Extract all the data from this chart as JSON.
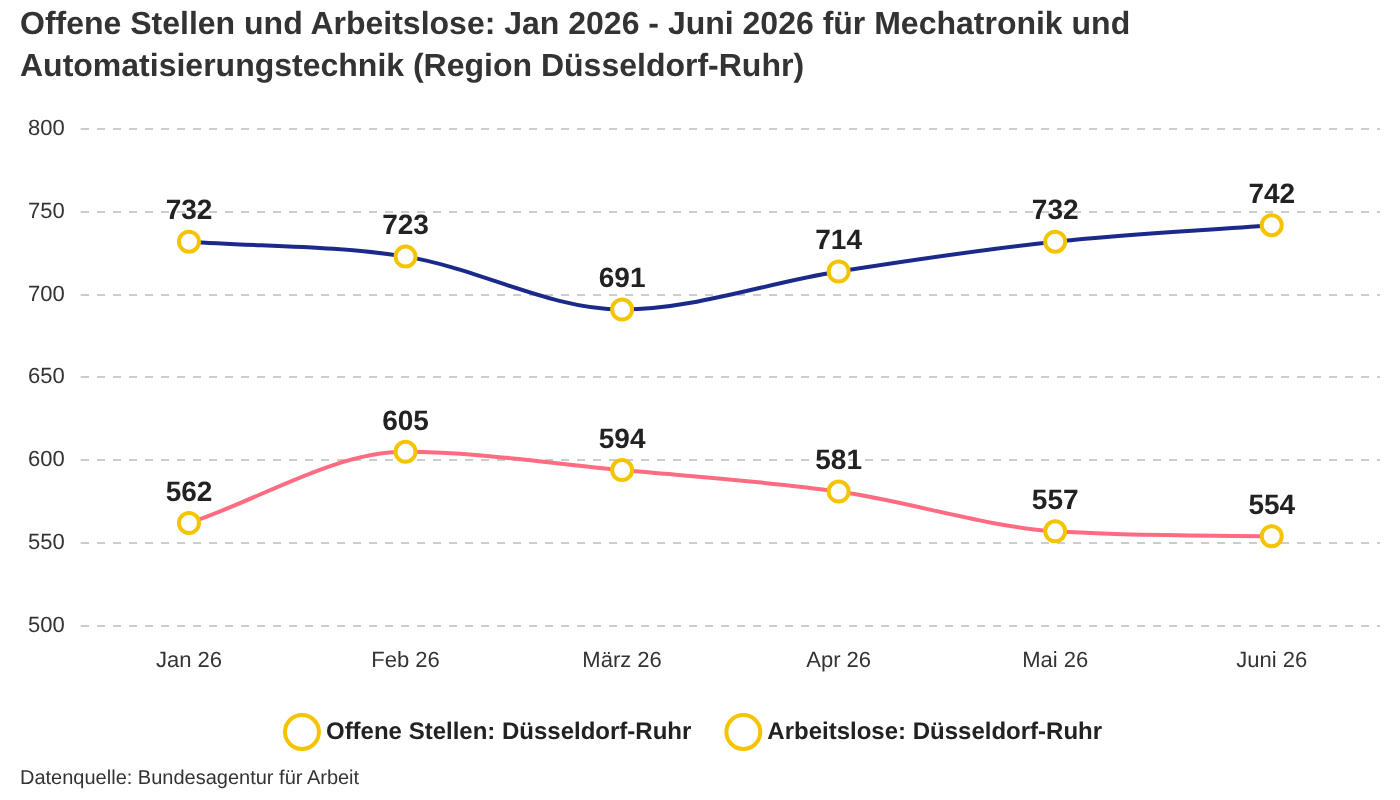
{
  "chart_data": {
    "type": "line",
    "title": "Offene Stellen und Arbeitslose: Jan 2026 - Juni 2026 für Mechatronik und Automatisierungstechnik (Region Düsseldorf-Ruhr)",
    "categories": [
      "Jan 26",
      "Feb 26",
      "März 26",
      "Apr 26",
      "Mai 26",
      "Juni 26"
    ],
    "series": [
      {
        "name": "Offene Stellen: Düsseldorf-Ruhr",
        "color": "#1b2a8a",
        "values": [
          732,
          723,
          691,
          714,
          732,
          742
        ]
      },
      {
        "name": "Arbeitslose: Düsseldorf-Ruhr",
        "color": "#ff6b81",
        "values": [
          562,
          605,
          594,
          581,
          557,
          554
        ]
      }
    ],
    "ylim": [
      500,
      800
    ],
    "yticks": [
      500,
      550,
      600,
      650,
      700,
      750,
      800
    ],
    "grid": "y",
    "legend": "bottom",
    "marker": "circle",
    "line_style": "solid",
    "data_labels": true,
    "annotations": [
      "Datenquelle: Bundesagentur für Arbeit"
    ]
  }
}
